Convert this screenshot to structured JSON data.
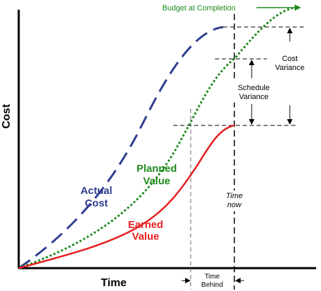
{
  "axes": {
    "y_label": "Cost",
    "x_label": "Time"
  },
  "curves": {
    "actual_cost": {
      "line1": "Actual",
      "line2": "Cost",
      "color": "#2e3d8f"
    },
    "planned_value": {
      "line1": "Planned",
      "line2": "Value",
      "color": "#1e8a1e"
    },
    "earned_value": {
      "line1": "Earned",
      "line2": "Value",
      "color": "#e61e1e"
    }
  },
  "annotations": {
    "budget_at_completion": "Budget at Completion",
    "cost_variance": {
      "line1": "Cost",
      "line2": "Variance"
    },
    "schedule_variance": {
      "line1": "Schedule",
      "line2": "Variance"
    },
    "time_now": {
      "line1": "Time",
      "line2": "now"
    },
    "time_behind": {
      "line1": "Time",
      "line2": "Behind"
    }
  },
  "colors": {
    "axis": "#000000",
    "guide": "#333333",
    "budget_label": "#1e8a1e"
  }
}
